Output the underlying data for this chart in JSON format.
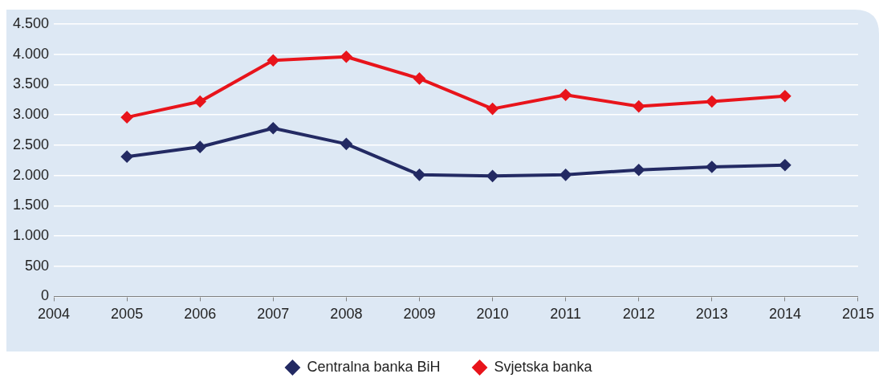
{
  "chart_data": {
    "type": "line",
    "x": [
      2005,
      2006,
      2007,
      2008,
      2009,
      2010,
      2011,
      2012,
      2013,
      2014
    ],
    "series": [
      {
        "name": "Centralna banka BiH",
        "color": "#232a63",
        "values": [
          2310,
          2470,
          2780,
          2520,
          2010,
          1990,
          2010,
          2090,
          2140,
          2170
        ]
      },
      {
        "name": "Svjetska banka",
        "color": "#e8141b",
        "values": [
          2960,
          3220,
          3900,
          3960,
          3600,
          3100,
          3330,
          3140,
          3220,
          3310
        ]
      }
    ],
    "xlim": [
      2004,
      2015
    ],
    "xticks": [
      2004,
      2005,
      2006,
      2007,
      2008,
      2009,
      2010,
      2011,
      2012,
      2013,
      2014,
      2015
    ],
    "ylim": [
      0,
      4500
    ],
    "yticks": [
      0,
      500,
      {
        "value": 1000,
        "label": "1.000"
      },
      {
        "value": 1500,
        "label": "1.500"
      },
      {
        "value": 2000,
        "label": "2.000"
      },
      {
        "value": 2500,
        "label": "2.500"
      },
      {
        "value": 3000,
        "label": "3.000"
      },
      {
        "value": 3500,
        "label": "3.500"
      },
      {
        "value": 4000,
        "label": "4.000"
      },
      {
        "value": 4500,
        "label": "4.500"
      }
    ],
    "grid": "y",
    "legend": "bottom",
    "marker": "diamond",
    "line_style": "solid"
  }
}
